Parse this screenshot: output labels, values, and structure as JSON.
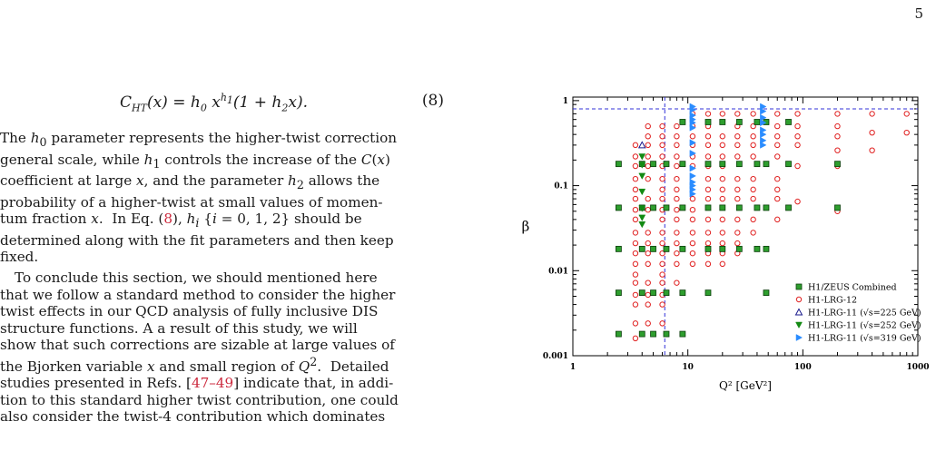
{
  "page": {
    "number": "5"
  },
  "equation": {
    "lhs": "C_HT(x) = h0 x^h1 (1 + h2x).",
    "number": "(8)"
  },
  "paragraph1": [
    "The h0 parameter represents the higher-twist correction",
    "general scale, while h1 controls the increase of the C(x)",
    "coefficient at large x, and the parameter h2 allows the",
    "probability of a higher-twist at small values of momen-",
    "tum fraction x.  In Eq. (8), hi {i = 0, 1, 2} should be",
    "determined along with the fit parameters and then keep",
    "fixed."
  ],
  "paragraph2": [
    "To conclude this section, we should mentioned here",
    "that we follow a standard method to consider the higher",
    "twist effects in our QCD analysis of fully inclusive DIS",
    "structure functions.  A a result of this study, we will",
    "show that such corrections are sizable at large values of",
    "the Bjorken variable x and small region of Q2.  Detailed",
    "studies presented in Refs. [47–49] indicate that, in addi-",
    "tion to this standard higher twist contribution, one could",
    "also consider the twist-4 contribution which dominates"
  ],
  "references": {
    "eq": "8",
    "refs": "47–49"
  },
  "chart_data": {
    "type": "scatter",
    "xlabel": "Q² [GeV²]",
    "ylabel": "β",
    "xscale": "log",
    "yscale": "log",
    "xlim": [
      1,
      1000
    ],
    "ylim": [
      0.001,
      1.1
    ],
    "x_ticks": [
      "1",
      "10",
      "100",
      "1000"
    ],
    "y_ticks": [
      "0.001",
      "0.01",
      "0.1",
      "1"
    ],
    "legend_position": "bottom-right",
    "reference_lines": {
      "horizontal_beta": 0.8,
      "vertical_Q2": 6.3
    },
    "colors": {
      "green": "#2e9e2e",
      "red": "#e02020",
      "navy": "#1a1a8c",
      "dkgreen": "#138a13",
      "blue": "#2a8cff",
      "guide": "#3030d8"
    },
    "series": [
      {
        "name": "H1/ZEUS Combined",
        "marker": "square",
        "color": "#2e9e2e",
        "points": [
          [
            2.5,
            0.0018
          ],
          [
            2.5,
            0.0055
          ],
          [
            2.5,
            0.018
          ],
          [
            2.5,
            0.055
          ],
          [
            2.5,
            0.18
          ],
          [
            4,
            0.0018
          ],
          [
            4,
            0.0055
          ],
          [
            4,
            0.018
          ],
          [
            4,
            0.055
          ],
          [
            4,
            0.18
          ],
          [
            5,
            0.0018
          ],
          [
            5,
            0.0055
          ],
          [
            5,
            0.018
          ],
          [
            5,
            0.055
          ],
          [
            5,
            0.18
          ],
          [
            6.5,
            0.0018
          ],
          [
            6.5,
            0.0055
          ],
          [
            6.5,
            0.018
          ],
          [
            6.5,
            0.055
          ],
          [
            6.5,
            0.18
          ],
          [
            9,
            0.0018
          ],
          [
            9,
            0.0055
          ],
          [
            9,
            0.018
          ],
          [
            9,
            0.055
          ],
          [
            9,
            0.18
          ],
          [
            9,
            0.56
          ],
          [
            15,
            0.0055
          ],
          [
            15,
            0.018
          ],
          [
            15,
            0.055
          ],
          [
            15,
            0.18
          ],
          [
            15,
            0.56
          ],
          [
            20,
            0.018
          ],
          [
            20,
            0.055
          ],
          [
            20,
            0.18
          ],
          [
            20,
            0.56
          ],
          [
            28,
            0.018
          ],
          [
            28,
            0.055
          ],
          [
            28,
            0.18
          ],
          [
            28,
            0.56
          ],
          [
            40,
            0.018
          ],
          [
            40,
            0.055
          ],
          [
            40,
            0.18
          ],
          [
            40,
            0.56
          ],
          [
            48,
            0.0055
          ],
          [
            48,
            0.018
          ],
          [
            48,
            0.055
          ],
          [
            48,
            0.18
          ],
          [
            48,
            0.56
          ],
          [
            75,
            0.055
          ],
          [
            75,
            0.18
          ],
          [
            75,
            0.56
          ],
          [
            200,
            0.055
          ],
          [
            200,
            0.18
          ]
        ]
      },
      {
        "name": "H1-LRG-12",
        "marker": "circle",
        "color": "#e02020",
        "points": [
          [
            3.5,
            0.0016
          ],
          [
            3.5,
            0.0024
          ],
          [
            3.5,
            0.004
          ],
          [
            3.5,
            0.0052
          ],
          [
            3.5,
            0.0072
          ],
          [
            3.5,
            0.009
          ],
          [
            3.5,
            0.012
          ],
          [
            3.5,
            0.016
          ],
          [
            3.5,
            0.021
          ],
          [
            3.5,
            0.028
          ],
          [
            3.5,
            0.04
          ],
          [
            3.5,
            0.052
          ],
          [
            3.5,
            0.07
          ],
          [
            3.5,
            0.09
          ],
          [
            3.5,
            0.12
          ],
          [
            3.5,
            0.17
          ],
          [
            3.5,
            0.22
          ],
          [
            3.5,
            0.3
          ],
          [
            4.5,
            0.0024
          ],
          [
            4.5,
            0.004
          ],
          [
            4.5,
            0.0052
          ],
          [
            4.5,
            0.0072
          ],
          [
            4.5,
            0.012
          ],
          [
            4.5,
            0.016
          ],
          [
            4.5,
            0.021
          ],
          [
            4.5,
            0.028
          ],
          [
            4.5,
            0.052
          ],
          [
            4.5,
            0.07
          ],
          [
            4.5,
            0.12
          ],
          [
            4.5,
            0.17
          ],
          [
            4.5,
            0.22
          ],
          [
            4.5,
            0.3
          ],
          [
            4.5,
            0.38
          ],
          [
            4.5,
            0.5
          ],
          [
            6,
            0.0024
          ],
          [
            6,
            0.004
          ],
          [
            6,
            0.0052
          ],
          [
            6,
            0.0072
          ],
          [
            6,
            0.009
          ],
          [
            6,
            0.012
          ],
          [
            6,
            0.016
          ],
          [
            6,
            0.021
          ],
          [
            6,
            0.028
          ],
          [
            6,
            0.04
          ],
          [
            6,
            0.052
          ],
          [
            6,
            0.07
          ],
          [
            6,
            0.09
          ],
          [
            6,
            0.12
          ],
          [
            6,
            0.17
          ],
          [
            6,
            0.22
          ],
          [
            6,
            0.3
          ],
          [
            6,
            0.38
          ],
          [
            6,
            0.5
          ],
          [
            8,
            0.0072
          ],
          [
            8,
            0.012
          ],
          [
            8,
            0.016
          ],
          [
            8,
            0.021
          ],
          [
            8,
            0.028
          ],
          [
            8,
            0.04
          ],
          [
            8,
            0.052
          ],
          [
            8,
            0.07
          ],
          [
            8,
            0.09
          ],
          [
            8,
            0.12
          ],
          [
            8,
            0.17
          ],
          [
            8,
            0.22
          ],
          [
            8,
            0.3
          ],
          [
            8,
            0.38
          ],
          [
            8,
            0.5
          ],
          [
            11,
            0.012
          ],
          [
            11,
            0.016
          ],
          [
            11,
            0.021
          ],
          [
            11,
            0.028
          ],
          [
            11,
            0.04
          ],
          [
            11,
            0.052
          ],
          [
            11,
            0.07
          ],
          [
            11,
            0.17
          ],
          [
            11,
            0.22
          ],
          [
            11,
            0.3
          ],
          [
            11,
            0.38
          ],
          [
            11,
            0.5
          ],
          [
            11,
            0.7
          ],
          [
            15,
            0.012
          ],
          [
            15,
            0.016
          ],
          [
            15,
            0.021
          ],
          [
            15,
            0.028
          ],
          [
            15,
            0.04
          ],
          [
            15,
            0.07
          ],
          [
            15,
            0.09
          ],
          [
            15,
            0.12
          ],
          [
            15,
            0.17
          ],
          [
            15,
            0.22
          ],
          [
            15,
            0.3
          ],
          [
            15,
            0.38
          ],
          [
            15,
            0.5
          ],
          [
            15,
            0.7
          ],
          [
            20,
            0.012
          ],
          [
            20,
            0.016
          ],
          [
            20,
            0.021
          ],
          [
            20,
            0.028
          ],
          [
            20,
            0.04
          ],
          [
            20,
            0.07
          ],
          [
            20,
            0.09
          ],
          [
            20,
            0.12
          ],
          [
            20,
            0.17
          ],
          [
            20,
            0.22
          ],
          [
            20,
            0.3
          ],
          [
            20,
            0.38
          ],
          [
            20,
            0.7
          ],
          [
            27,
            0.016
          ],
          [
            27,
            0.021
          ],
          [
            27,
            0.028
          ],
          [
            27,
            0.04
          ],
          [
            27,
            0.07
          ],
          [
            27,
            0.09
          ],
          [
            27,
            0.12
          ],
          [
            27,
            0.22
          ],
          [
            27,
            0.3
          ],
          [
            27,
            0.38
          ],
          [
            27,
            0.5
          ],
          [
            27,
            0.7
          ],
          [
            37,
            0.028
          ],
          [
            37,
            0.04
          ],
          [
            37,
            0.07
          ],
          [
            37,
            0.09
          ],
          [
            37,
            0.12
          ],
          [
            37,
            0.22
          ],
          [
            37,
            0.3
          ],
          [
            37,
            0.38
          ],
          [
            37,
            0.5
          ],
          [
            37,
            0.7
          ],
          [
            60,
            0.04
          ],
          [
            60,
            0.07
          ],
          [
            60,
            0.09
          ],
          [
            60,
            0.12
          ],
          [
            60,
            0.22
          ],
          [
            60,
            0.3
          ],
          [
            60,
            0.38
          ],
          [
            60,
            0.5
          ],
          [
            60,
            0.7
          ],
          [
            90,
            0.065
          ],
          [
            90,
            0.17
          ],
          [
            90,
            0.3
          ],
          [
            90,
            0.38
          ],
          [
            90,
            0.5
          ],
          [
            90,
            0.7
          ],
          [
            200,
            0.05
          ],
          [
            200,
            0.17
          ],
          [
            200,
            0.26
          ],
          [
            200,
            0.38
          ],
          [
            200,
            0.5
          ],
          [
            200,
            0.7
          ],
          [
            400,
            0.26
          ],
          [
            400,
            0.42
          ],
          [
            400,
            0.7
          ],
          [
            800,
            0.42
          ],
          [
            800,
            0.7
          ]
        ]
      },
      {
        "name": "H1-LRG-11 (√s=225 GeV)",
        "marker": "triangle-up",
        "color": "#1a1a8c",
        "points": [
          [
            4,
            0.3
          ]
        ]
      },
      {
        "name": "H1-LRG-11 (√s=252 GeV)",
        "marker": "triangle-down",
        "color": "#138a13",
        "points": [
          [
            4,
            0.035
          ],
          [
            4,
            0.042
          ],
          [
            4,
            0.054
          ],
          [
            4,
            0.085
          ],
          [
            4,
            0.13
          ],
          [
            4,
            0.175
          ],
          [
            4,
            0.22
          ]
        ]
      },
      {
        "name": "H1-LRG-11 (√s=319 GeV)",
        "marker": "triangle-right",
        "color": "#2a8cff",
        "points": [
          [
            11,
            0.08
          ],
          [
            11,
            0.09
          ],
          [
            11,
            0.1
          ],
          [
            11,
            0.11
          ],
          [
            11,
            0.13
          ],
          [
            11,
            0.16
          ],
          [
            11,
            0.24
          ],
          [
            11,
            0.32
          ],
          [
            11,
            0.48
          ],
          [
            11,
            0.55
          ],
          [
            11,
            0.6
          ],
          [
            11,
            0.67
          ],
          [
            11,
            0.78
          ],
          [
            11,
            0.85
          ],
          [
            45,
            0.3
          ],
          [
            45,
            0.34
          ],
          [
            45,
            0.4
          ],
          [
            45,
            0.45
          ],
          [
            45,
            0.55
          ],
          [
            45,
            0.63
          ],
          [
            45,
            0.75
          ],
          [
            45,
            0.85
          ]
        ]
      }
    ]
  }
}
